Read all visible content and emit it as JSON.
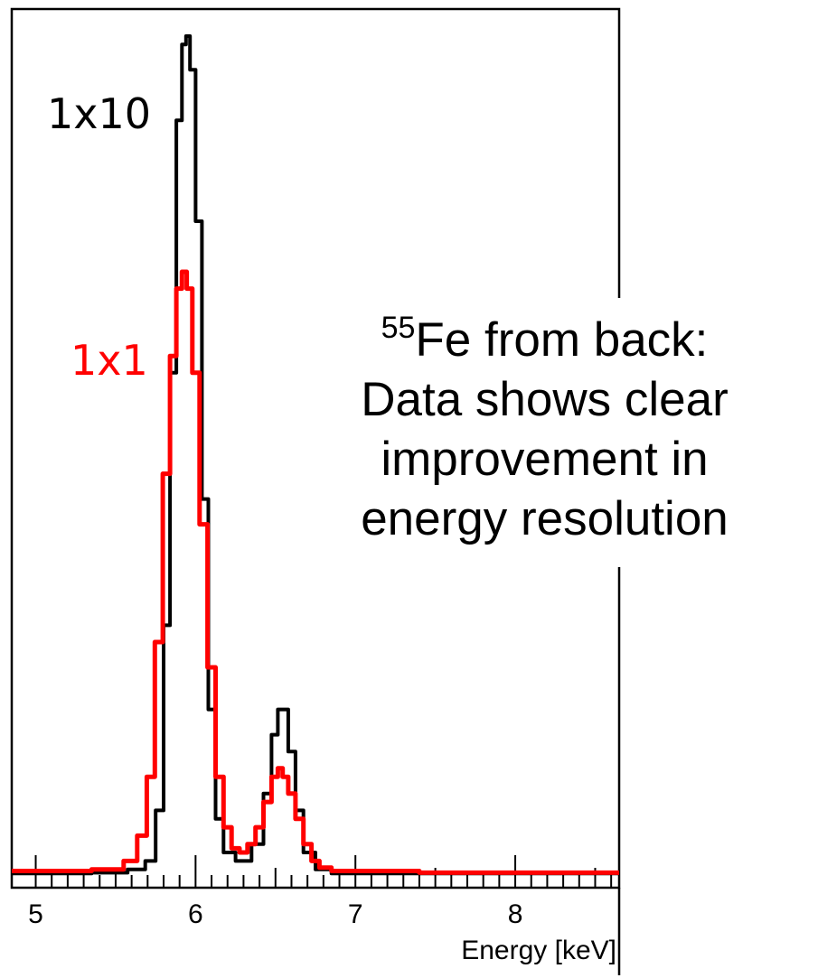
{
  "chart_data": {
    "type": "line",
    "xlabel": "Energy [keV]",
    "ylabel": "",
    "xlim": [
      4.85,
      8.65
    ],
    "ylim": [
      0,
      1.0
    ],
    "x_ticks": [
      5,
      6,
      7,
      8
    ],
    "x_tick_labels": [
      "5",
      "6",
      "7",
      "8"
    ],
    "grid": false,
    "series": [
      {
        "name": "1x10",
        "color": "#000000",
        "x": [
          4.85,
          5.2,
          5.5,
          5.65,
          5.72,
          5.78,
          5.82,
          5.86,
          5.9,
          5.93,
          5.95,
          5.98,
          6.02,
          6.06,
          6.1,
          6.15,
          6.2,
          6.3,
          6.4,
          6.45,
          6.5,
          6.53,
          6.56,
          6.6,
          6.65,
          6.7,
          6.8,
          6.9,
          7.2,
          7.6,
          8.0,
          8.65
        ],
        "y": [
          0.005,
          0.005,
          0.006,
          0.01,
          0.02,
          0.08,
          0.3,
          0.6,
          0.9,
          0.99,
          1.0,
          0.96,
          0.78,
          0.45,
          0.2,
          0.07,
          0.03,
          0.02,
          0.04,
          0.1,
          0.17,
          0.2,
          0.2,
          0.15,
          0.08,
          0.03,
          0.01,
          0.005,
          0.005,
          0.005,
          0.005,
          0.005
        ]
      },
      {
        "name": "1x1",
        "color": "#ff0000",
        "x": [
          4.85,
          5.2,
          5.5,
          5.6,
          5.67,
          5.72,
          5.77,
          5.82,
          5.86,
          5.9,
          5.93,
          5.96,
          6.0,
          6.05,
          6.1,
          6.15,
          6.2,
          6.25,
          6.3,
          6.35,
          6.4,
          6.45,
          6.5,
          6.53,
          6.56,
          6.6,
          6.65,
          6.7,
          6.75,
          6.8,
          6.9,
          7.2,
          7.6,
          8.0,
          8.65
        ],
        "y": [
          0.008,
          0.008,
          0.01,
          0.02,
          0.05,
          0.12,
          0.28,
          0.48,
          0.62,
          0.7,
          0.72,
          0.7,
          0.6,
          0.42,
          0.25,
          0.12,
          0.06,
          0.035,
          0.03,
          0.04,
          0.06,
          0.09,
          0.12,
          0.13,
          0.12,
          0.1,
          0.07,
          0.04,
          0.02,
          0.012,
          0.008,
          0.008,
          0.006,
          0.006,
          0.006
        ]
      }
    ],
    "annotation": {
      "superscript": "55",
      "line1": "Fe from back:",
      "line2": "Data shows clear",
      "line3": "improvement in",
      "line4": "energy resolution"
    }
  }
}
